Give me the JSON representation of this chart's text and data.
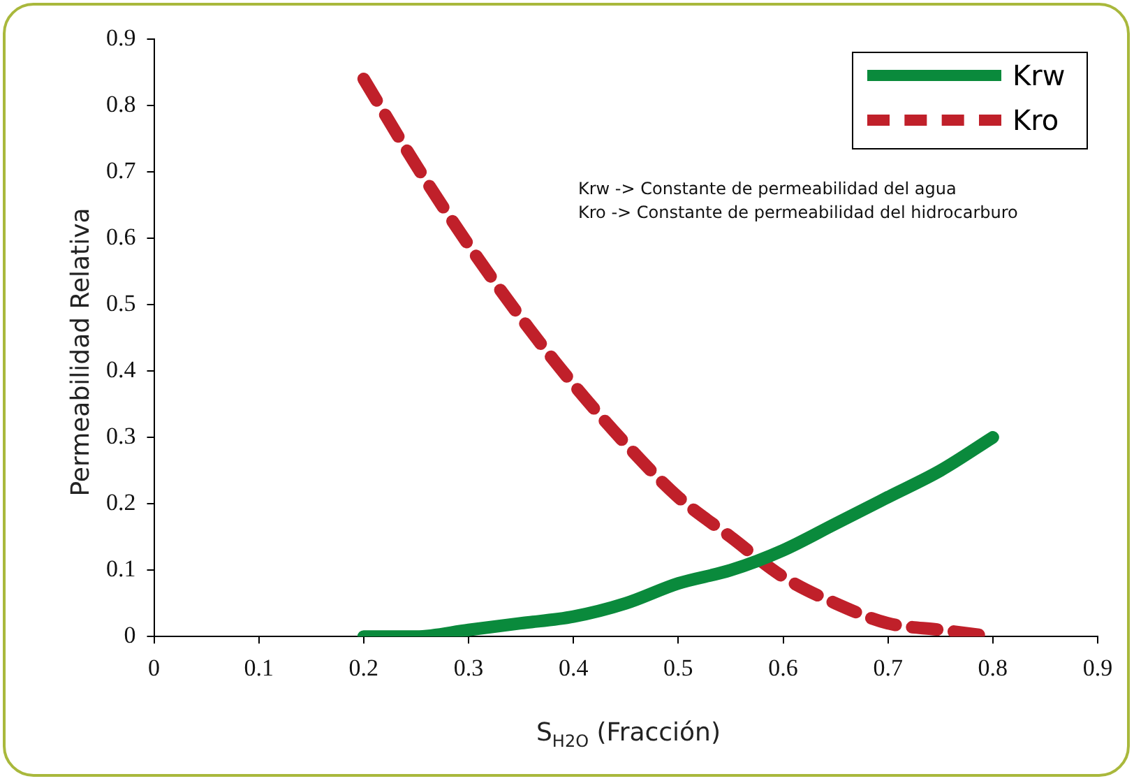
{
  "chart_data": {
    "type": "line",
    "xlabel": "S$_{H2O}$ (Fracción)",
    "ylabel": "Permeabilidad Relativa",
    "x": [
      0.2,
      0.25,
      0.3,
      0.35,
      0.4,
      0.45,
      0.5,
      0.55,
      0.6,
      0.65,
      0.7,
      0.75,
      0.8
    ],
    "series": [
      {
        "name": "Krw",
        "color": "#0a8a3c",
        "line_style": "solid",
        "values": [
          0,
          0.0,
          0.01,
          0.02,
          0.03,
          0.05,
          0.08,
          0.1,
          0.13,
          0.17,
          0.21,
          0.25,
          0.3
        ]
      },
      {
        "name": "Kro",
        "color": "#c0202a",
        "line_style": "dashed",
        "values": [
          0.84,
          0.71,
          0.59,
          0.48,
          0.38,
          0.29,
          0.21,
          0.15,
          0.09,
          0.05,
          0.02,
          0.01,
          0
        ]
      }
    ],
    "xlim": [
      0,
      0.9
    ],
    "xticks": [
      0,
      0.1,
      0.2,
      0.3,
      0.4,
      0.5,
      0.6,
      0.7,
      0.8,
      0.9
    ],
    "ylim": [
      0,
      0.9
    ],
    "yticks": [
      0,
      0.1,
      0.2,
      0.3,
      0.4,
      0.5,
      0.6,
      0.7,
      0.8,
      0.9
    ],
    "grid": false,
    "legend": "top right",
    "marker": "none",
    "annotations": [
      "Krw -> Constante de permeabilidad del agua",
      "Kro -> Constante de permeabilidad del hidrocarburo"
    ]
  }
}
